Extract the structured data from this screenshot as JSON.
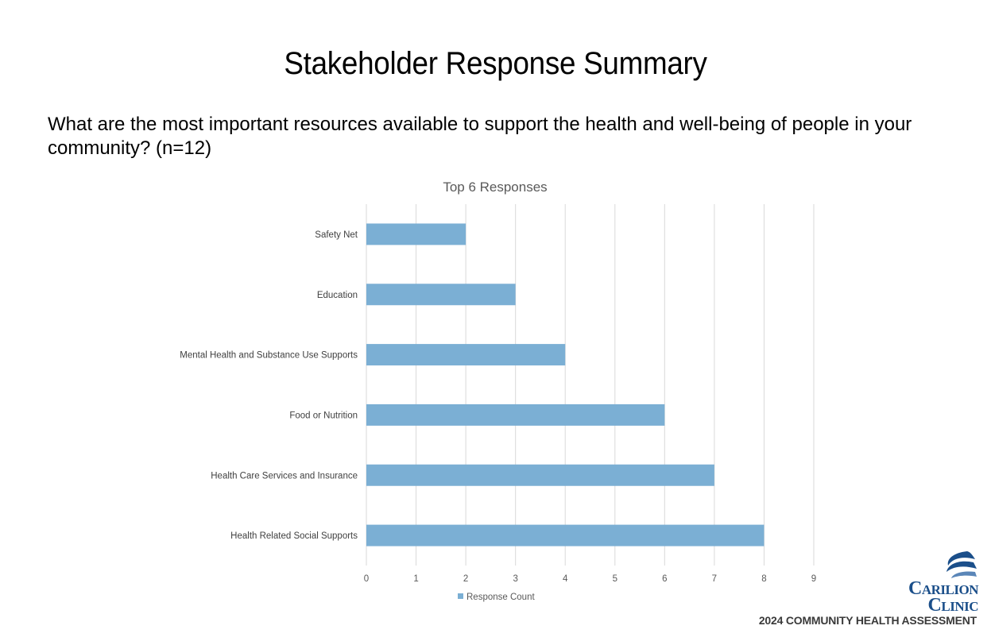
{
  "slide": {
    "title": "Stakeholder Response Summary",
    "question": "What are the most important resources available to support the health and well-being of people in your community? (n=12)"
  },
  "branding": {
    "logo_line1": "Carilion",
    "logo_line2": "Clinic",
    "assessment": "2024 COMMUNITY HEALTH ASSESSMENT",
    "logo_color": "#1b4f8a"
  },
  "chart_data": {
    "type": "bar",
    "orientation": "horizontal",
    "title": "Top 6 Responses",
    "categories": [
      "Safety Net",
      "Education",
      "Mental Health and Substance Use Supports",
      "Food or Nutrition",
      "Health Care Services and Insurance",
      "Health Related Social Supports"
    ],
    "series": [
      {
        "name": "Response Count",
        "values": [
          2,
          3,
          4,
          6,
          7,
          8
        ],
        "color": "#7bafd4"
      }
    ],
    "xlim": [
      0,
      9
    ],
    "xticks": [
      0,
      1,
      2,
      3,
      4,
      5,
      6,
      7,
      8,
      9
    ],
    "grid": true,
    "legend_position": "bottom"
  }
}
